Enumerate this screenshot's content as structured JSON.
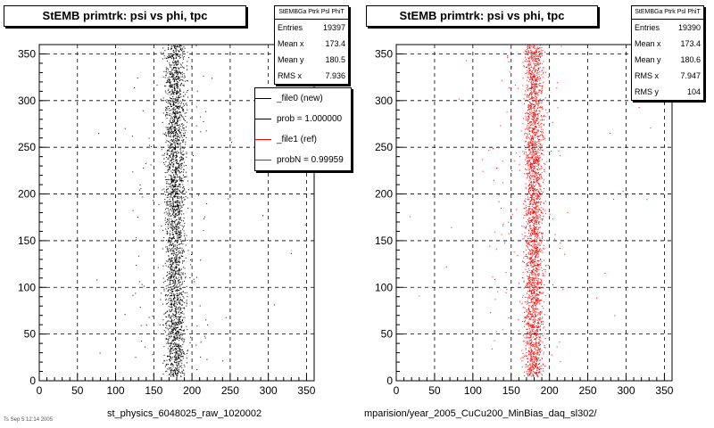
{
  "chart_data": [
    {
      "type": "scatter",
      "title": "StEMB primtrk: psi vs phi, tpc",
      "xlabel": "st_physics_6048025_raw_1020002",
      "ylabel": "",
      "xlim": [
        0,
        360
      ],
      "ylim": [
        0,
        360
      ],
      "xticks": [
        "0",
        "50",
        "100",
        "150",
        "200",
        "250",
        "300",
        "350"
      ],
      "yticks": [
        "0",
        "50",
        "100",
        "150",
        "200",
        "250",
        "300",
        "350"
      ],
      "grid": true,
      "marker_color": "#000000",
      "band": {
        "x_min": 160,
        "x_max": 195,
        "y_min": 5,
        "y_max": 360
      },
      "stats": {
        "header": "StEMBGa Ptrk Psl PhiT",
        "entries_label": "Entries",
        "entries": "19397",
        "meanx_label": "Mean x",
        "meanx": "173.4",
        "meany_label": "Mean y",
        "meany": "180.5",
        "rmsx_label": "RMS x",
        "rmsx": "7.936"
      },
      "legend": {
        "placement": "top-right",
        "entries": [
          {
            "label": "_file0 (new)",
            "color": "#000000"
          },
          {
            "label": "prob = 1.000000",
            "color": "#000000"
          },
          {
            "label": "_file1 (ref)",
            "color": "#ff0000"
          },
          {
            "label": "probN = 0.99959",
            "color": "#ff0000"
          }
        ]
      }
    },
    {
      "type": "scatter",
      "title": "StEMB primtrk: psi vs phi, tpc",
      "xlabel": "mparision/year_2005_CuCu200_MinBias_daq_sl302/",
      "ylabel": "",
      "xlim": [
        0,
        360
      ],
      "ylim": [
        0,
        360
      ],
      "xticks": [
        "0",
        "50",
        "100",
        "150",
        "200",
        "250",
        "300",
        "350"
      ],
      "yticks": [
        "0",
        "50",
        "100",
        "150",
        "200",
        "250",
        "300",
        "350"
      ],
      "grid": true,
      "marker_color": "#ff0000",
      "band": {
        "x_min": 163,
        "x_max": 195,
        "y_min": 5,
        "y_max": 360
      },
      "stats": {
        "header": "StEMBGa Ptrk Psl PhiT",
        "entries_label": "Entries",
        "entries": "19390",
        "meanx_label": "Mean x",
        "meanx": "173.4",
        "meany_label": "Mean y",
        "meany": "180.6",
        "rmsx_label": "RMS x",
        "rmsx": "7.947",
        "rmsy_label": "RMS y",
        "rmsy": "104"
      }
    }
  ],
  "footer_small": "Ts Sep 5 12:14 2005"
}
